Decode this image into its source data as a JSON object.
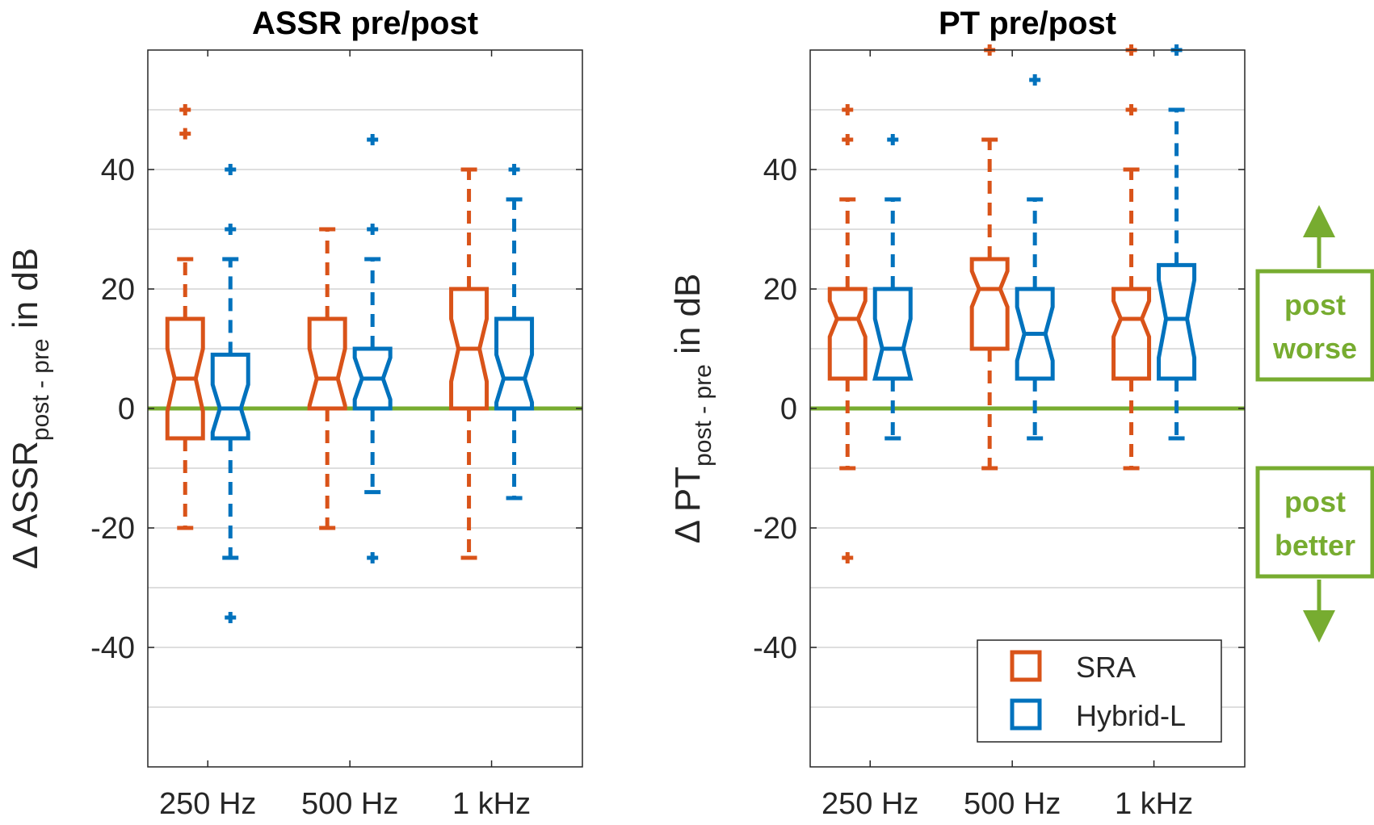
{
  "colors": {
    "sra": "#d95319",
    "hybrid": "#0072bd",
    "zero": "#77ac30",
    "axis": "#262626",
    "grid": "#dedede"
  },
  "legend": {
    "items": [
      "SRA",
      "Hybrid-L"
    ]
  },
  "annotations": {
    "worse": [
      "post",
      "worse"
    ],
    "better": [
      "post",
      "better"
    ]
  },
  "chart_data": [
    {
      "type": "boxplot",
      "title": "ASSR pre/post",
      "ylabel": {
        "delta": "Δ",
        "main": "ASSR",
        "sub": "post - pre",
        "unit": "in dB"
      },
      "ylim": [
        -60,
        60
      ],
      "yticks": [
        -40,
        -20,
        0,
        20,
        40
      ],
      "ytick_labels": [
        "-40",
        "-20",
        "0",
        "20",
        "40"
      ],
      "grid_values": [
        -50,
        -40,
        -30,
        -20,
        -10,
        10,
        20,
        30,
        40,
        50
      ],
      "categories": [
        "250 Hz",
        "500 Hz",
        "1 kHz"
      ],
      "reference_line": 0,
      "series": [
        {
          "name": "SRA",
          "boxes": [
            {
              "wlo": -20,
              "q1": -5,
              "med": 5,
              "nlo": -0.5,
              "nhi": 10,
              "q3": 15,
              "whi": 25,
              "outliers": [
                46,
                50
              ]
            },
            {
              "wlo": -20,
              "q1": 0,
              "med": 5,
              "nlo": 0.5,
              "nhi": 10,
              "q3": 15,
              "whi": 30,
              "outliers": []
            },
            {
              "wlo": -25,
              "q1": 0,
              "med": 10,
              "nlo": 4.5,
              "nhi": 15,
              "q3": 20,
              "whi": 40,
              "outliers": []
            }
          ]
        },
        {
          "name": "Hybrid-L",
          "boxes": [
            {
              "wlo": -25,
              "q1": -5,
              "med": 0,
              "nlo": -4,
              "nhi": 4,
              "q3": 9,
              "whi": 25,
              "outliers": [
                -35,
                30,
                40
              ]
            },
            {
              "wlo": -14,
              "q1": 0,
              "med": 5,
              "nlo": 1.5,
              "nhi": 8.5,
              "q3": 10,
              "whi": 25,
              "outliers": [
                -25,
                30,
                45
              ]
            },
            {
              "wlo": -15,
              "q1": 0,
              "med": 5,
              "nlo": 1,
              "nhi": 9,
              "q3": 15,
              "whi": 35,
              "outliers": [
                40
              ]
            }
          ]
        }
      ]
    },
    {
      "type": "boxplot",
      "title": "PT pre/post",
      "ylabel": {
        "delta": "Δ",
        "main": "PT",
        "sub": "post - pre",
        "unit": "in dB"
      },
      "ylim": [
        -60,
        60
      ],
      "yticks": [
        -40,
        -20,
        0,
        20,
        40
      ],
      "ytick_labels": [
        "-40",
        "-20",
        "0",
        "20",
        "40"
      ],
      "grid_values": [
        -50,
        -40,
        -30,
        -20,
        -10,
        10,
        20,
        30,
        40,
        50
      ],
      "categories": [
        "250 Hz",
        "500 Hz",
        "1 kHz"
      ],
      "reference_line": 0,
      "series": [
        {
          "name": "SRA",
          "boxes": [
            {
              "wlo": -10,
              "q1": 5,
              "med": 15,
              "nlo": 12,
              "nhi": 18,
              "q3": 20,
              "whi": 35,
              "outliers": [
                -25,
                45,
                50
              ]
            },
            {
              "wlo": -10,
              "q1": 10,
              "med": 20,
              "nlo": 17,
              "nhi": 23,
              "q3": 25,
              "whi": 45,
              "outliers": [
                60
              ]
            },
            {
              "wlo": -10,
              "q1": 5,
              "med": 15,
              "nlo": 12,
              "nhi": 18,
              "q3": 20,
              "whi": 40,
              "outliers": [
                50,
                60
              ]
            }
          ]
        },
        {
          "name": "Hybrid-L",
          "boxes": [
            {
              "wlo": -5,
              "q1": 5,
              "med": 10,
              "nlo": 5,
              "nhi": 15,
              "q3": 20,
              "whi": 35,
              "outliers": [
                45
              ]
            },
            {
              "wlo": -5,
              "q1": 5,
              "med": 12.5,
              "nlo": 8,
              "nhi": 17,
              "q3": 20,
              "whi": 35,
              "outliers": [
                55
              ]
            },
            {
              "wlo": -5,
              "q1": 5,
              "med": 15,
              "nlo": 8.5,
              "nhi": 21.5,
              "q3": 24,
              "whi": 50,
              "outliers": [
                60
              ]
            }
          ]
        }
      ]
    }
  ]
}
